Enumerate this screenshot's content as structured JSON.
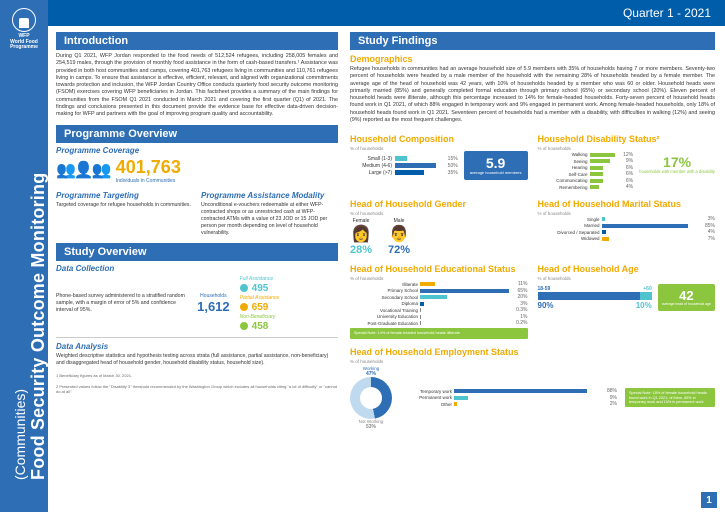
{
  "colors": {
    "primary": "#2e6eb5",
    "primary_dark": "#005daa",
    "accent": "#f0ab00",
    "green": "#8cc63f",
    "teal": "#4fc4cf",
    "grey": "#888888"
  },
  "header": {
    "quarter": "Quarter 1 - 2021"
  },
  "sidebar": {
    "title": "Food Security Outcome Monitoring",
    "subtitle": "(Communities)",
    "org_abbr": "WFP",
    "org_name": "World Food Programme"
  },
  "intro": {
    "heading": "Introduction",
    "text": "During Q1 2021, WFP Jordan responded to the food needs of 512,524 refugees, including 258,005 females and 254,519 males, through the provision of monthly food assistance in the form of cash-based transfers.¹ Assistance was provided in both host communities and camps, covering 401,763 refugees living in communities and 110,761 refugees living in camps. To ensure that assistance is effective, efficient, relevant, and aligned with organizational commitments towards protection and inclusion, the WFP Jordan Country Office conducts quarterly food security outcome monitoring (FSOM) exercises covering WFP beneficiaries in Jordan. This factsheet provides a summary of the main findings for communities from the FSOM Q1 2021 conducted in March 2021 and covering the first quarter (Q1) of 2021. The findings and conclusions presented in this document provide the evidence base for effective data-driven decision-making for WFP and partners with the goal of improving program quality and accountability."
  },
  "programme": {
    "heading": "Programme Overview",
    "coverage_label": "Programme Coverage",
    "coverage_number": "401,763",
    "coverage_caption": "Individuals in Communities",
    "targeting_label": "Programme Targeting",
    "targeting_text": "Targeted coverage for refugee households in communities.",
    "modality_label": "Programme Assistance Modality",
    "modality_text": "Unconditional e-vouchers redeemable at either WFP-contracted shops or as unrestricted cash at WFP-contracted ATMs with a value of 23 JOD or 15 JOD per person per month depending on level of household vulnerability."
  },
  "study": {
    "heading": "Study Overview",
    "data_collection_label": "Data Collection",
    "data_collection_text": "Phone-based survey administered to a stratified random sample, with a margin of error of 5% and confidence interval of 95%.",
    "households_label": "Households",
    "households_value": "1,612",
    "tiers": [
      {
        "label": "Full Assistance",
        "value": "495",
        "color": "#4fc4cf"
      },
      {
        "label": "Partial Assistance",
        "value": "659",
        "color": "#f0ab00"
      },
      {
        "label": "Non-Beneficiary",
        "value": "458",
        "color": "#8cc63f"
      }
    ],
    "data_analysis_label": "Data Analysis",
    "data_analysis_text": "Weighted descriptive statistics and hypothesis testing across strata (full assistance, partial assistance, non-beneficiary) and disaggregated head of household gender, household disability status, household size)."
  },
  "findings": {
    "heading": "Study Findings",
    "demo_heading": "Demographics",
    "demo_text": "Refugee households in communities had an average household size of 5.9 members with 35% of households having 7 or more members. Seventy-two percent of households were headed by a male member of the household with the remaining 28% of households headed by a female member. The average age of the head of household was 42 years, with 10% of households headed by a member who was 60 or older. Household heads were primarily married (85%) and generally completed formal education through primary school (65%) or secondary school (20%). Eleven percent of household heads were illiterate, although this percentage increased to 14% for female-headed households. Forty-seven percent of household heads found work in Q1 2021, of which 88% engaged in temporary work and 9% engaged in permanent work. Among female-headed households, only 18% of household heads found work in Q1 2021. Seventeen percent of households had a member with a disability, with difficulties in walking (12%) and seeing (9%) reported as the most frequent challenges.",
    "composition": {
      "title": "Household Composition",
      "unit": "% of households",
      "rows": [
        {
          "label": "Small (1-3)",
          "value": 15,
          "color": "#4fc4cf"
        },
        {
          "label": "Medium (4-6)",
          "value": 50,
          "color": "#2e6eb5"
        },
        {
          "label": "Large (>7)",
          "value": 35,
          "color": "#005daa"
        }
      ],
      "avg_value": "5.9",
      "avg_label": "average household members"
    },
    "disability": {
      "title": "Household Disability Status²",
      "unit": "% of households",
      "rows": [
        {
          "label": "Walking",
          "value": 12
        },
        {
          "label": "Seeing",
          "value": 9
        },
        {
          "label": "Hearing",
          "value": 6
        },
        {
          "label": "Self-Care",
          "value": 6
        },
        {
          "label": "Communicating",
          "value": 6
        },
        {
          "label": "Remembering",
          "value": 4
        }
      ],
      "bar_color": "#8cc63f",
      "callout_pct": "17%",
      "callout_text": "households with member with a disability"
    },
    "gender": {
      "title": "Head of Household Gender",
      "unit": "% of households",
      "female_label": "Female",
      "male_label": "Male",
      "female_pct": "28%",
      "male_pct": "72%",
      "female_color": "#4fc4cf",
      "male_color": "#2e6eb5"
    },
    "marital": {
      "title": "Head of Household Marital Status",
      "unit": "% of households",
      "rows": [
        {
          "label": "Single",
          "value": 3,
          "color": "#4fc4cf"
        },
        {
          "label": "Married",
          "value": 85,
          "color": "#2e6eb5"
        },
        {
          "label": "Divorced / Separated",
          "value": 4,
          "color": "#005daa"
        },
        {
          "label": "Widowed",
          "value": 7,
          "color": "#f0ab00"
        }
      ]
    },
    "education": {
      "title": "Head of Household Educational Status",
      "unit": "% of households",
      "rows": [
        {
          "label": "Illiterate",
          "value": 11,
          "color": "#f0ab00"
        },
        {
          "label": "Primary School",
          "value": 65,
          "color": "#2e6eb5"
        },
        {
          "label": "Secondary School",
          "value": 20,
          "color": "#4fc4cf"
        },
        {
          "label": "Diploma",
          "value": 3,
          "color": "#005daa"
        },
        {
          "label": "Vocational Training",
          "value": 0.3,
          "display": "0.3%",
          "color": "#888"
        },
        {
          "label": "University Education",
          "value": 1,
          "color": "#888"
        },
        {
          "label": "Post-Graduate Education",
          "value": 0.2,
          "display": "0.2%",
          "color": "#888"
        }
      ],
      "note": "Special Note: 14% of female-headed household heads illiterate"
    },
    "age": {
      "title": "Head of Household Age",
      "unit": "% of households",
      "segments": [
        {
          "label": "18-59",
          "value": 90,
          "display": "90%",
          "color": "#2e6eb5"
        },
        {
          "label": "+60",
          "value": 10,
          "display": "10%",
          "color": "#4fc4cf"
        }
      ],
      "avg_value": "42",
      "avg_label": "average head of household age"
    },
    "employment": {
      "title": "Head of Household Employment Status",
      "unit": "% of households",
      "donut": [
        {
          "label": "Working",
          "value": 47,
          "display": "47%",
          "color": "#2e6eb5"
        },
        {
          "label": "Not Working",
          "value": 53,
          "display": "53%",
          "color": "#bfd9ef"
        }
      ],
      "breakdown": [
        {
          "label": "Temporary work",
          "value": 88,
          "color": "#2e6eb5"
        },
        {
          "label": "Permanent work",
          "value": 9,
          "color": "#4fc4cf"
        },
        {
          "label": "Other",
          "value": 2,
          "color": "#f0ab00"
        }
      ],
      "note": "Special Note: 18% of female household heads found work in Q1 2021; of them, 85% in temporary work and 15% in permanent work"
    }
  },
  "footnotes": {
    "f1": "1   Beneficiary figures as of March 30, 2021.",
    "f2": "2   Presented values follow the \"Disability 3\" threshold recommended by the Washington Group which includes all households citing \"a lot of difficulty\" or \"cannot do at all\"."
  },
  "page_number": "1"
}
